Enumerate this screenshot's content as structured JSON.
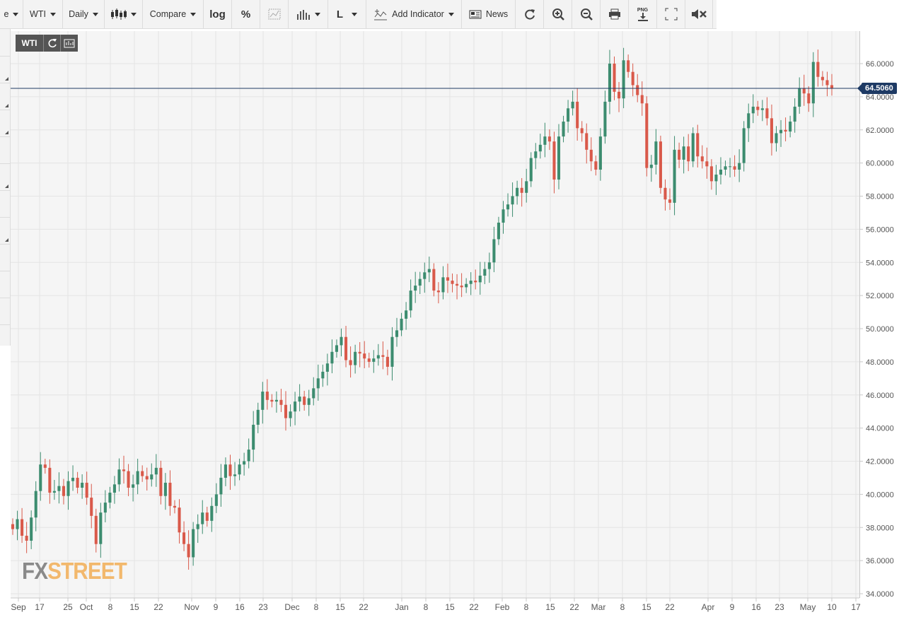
{
  "toolbar": {
    "partial_label": "e",
    "symbol": "WTI",
    "interval": "Daily",
    "compare": "Compare",
    "log": "log",
    "percent": "%",
    "line_type": "L",
    "add_indicator": "Add Indicator",
    "news": "News",
    "png": "PNG"
  },
  "plot_badge": {
    "symbol": "WTI"
  },
  "price_badge": "64.5060",
  "watermark": {
    "part1": "FX",
    "part2": "STREET"
  },
  "colors": {
    "up": "#3c8c6f",
    "down": "#d9594a",
    "price_line": "#1e3a64",
    "grid": "#e4e4e4"
  },
  "chart_data": {
    "type": "candlestick",
    "symbol": "WTI",
    "interval": "Daily",
    "ylim": [
      34,
      67.5
    ],
    "y_ticks": [
      "34.0000",
      "36.0000",
      "38.0000",
      "40.0000",
      "42.0000",
      "44.0000",
      "46.0000",
      "48.0000",
      "50.0000",
      "52.0000",
      "54.0000",
      "56.0000",
      "58.0000",
      "60.0000",
      "62.0000",
      "64.0000",
      "66.0000"
    ],
    "x_ticks": [
      "Sep",
      "17",
      "25",
      "Oct",
      "8",
      "15",
      "22",
      "Nov",
      "9",
      "16",
      "23",
      "Dec",
      "8",
      "15",
      "22",
      "Jan",
      "8",
      "15",
      "22",
      "Feb",
      "8",
      "15",
      "22",
      "Mar",
      "8",
      "15",
      "22",
      "Apr",
      "9",
      "16",
      "23",
      "May",
      "10",
      "17"
    ],
    "current_price": 64.506,
    "series": [
      {
        "values": [
          [
            38.2,
            37.9
          ],
          [
            37.9,
            38.5
          ],
          [
            38.5,
            37.5
          ],
          [
            37.5,
            37.2
          ],
          [
            37.2,
            38.6
          ],
          [
            38.6,
            40.2
          ],
          [
            40.2,
            41.8
          ],
          [
            41.8,
            41.6
          ],
          [
            41.6,
            40.1
          ],
          [
            40.1,
            40.2
          ],
          [
            40.2,
            40.5
          ],
          [
            40.5,
            39.9
          ],
          [
            39.9,
            40.8
          ],
          [
            40.8,
            41.0
          ],
          [
            41.0,
            40.4
          ],
          [
            40.4,
            40.7
          ],
          [
            40.7,
            39.8
          ],
          [
            39.8,
            38.7
          ],
          [
            38.7,
            37.0
          ],
          [
            37.0,
            38.9
          ],
          [
            38.9,
            39.5
          ],
          [
            39.5,
            40.1
          ],
          [
            40.1,
            40.6
          ],
          [
            40.6,
            41.5
          ],
          [
            41.5,
            41.4
          ],
          [
            41.4,
            40.4
          ],
          [
            40.4,
            40.6
          ],
          [
            40.6,
            41.4
          ],
          [
            41.4,
            41.1
          ],
          [
            41.1,
            40.9
          ],
          [
            40.9,
            41.2
          ],
          [
            41.2,
            41.6
          ],
          [
            41.6,
            39.9
          ],
          [
            39.9,
            40.7
          ],
          [
            40.7,
            39.3
          ],
          [
            39.3,
            39.2
          ],
          [
            39.2,
            37.7
          ],
          [
            37.7,
            37.0
          ],
          [
            37.0,
            36.2
          ],
          [
            36.2,
            37.9
          ],
          [
            37.9,
            38.2
          ],
          [
            38.2,
            38.9
          ],
          [
            38.9,
            38.4
          ],
          [
            38.4,
            39.3
          ],
          [
            39.3,
            40.0
          ],
          [
            40.0,
            41.0
          ],
          [
            41.0,
            41.8
          ],
          [
            41.8,
            41.1
          ],
          [
            41.1,
            41.2
          ],
          [
            41.2,
            41.8
          ],
          [
            41.8,
            42.0
          ],
          [
            42.0,
            42.7
          ],
          [
            42.7,
            44.2
          ],
          [
            44.2,
            45.1
          ],
          [
            45.1,
            46.2
          ],
          [
            46.2,
            45.7
          ],
          [
            45.7,
            45.6
          ],
          [
            45.6,
            45.7
          ],
          [
            45.7,
            45.4
          ],
          [
            45.4,
            44.6
          ],
          [
            44.6,
            45.0
          ],
          [
            45.0,
            45.6
          ],
          [
            45.6,
            45.9
          ],
          [
            45.9,
            45.4
          ],
          [
            45.4,
            45.8
          ],
          [
            45.8,
            46.4
          ],
          [
            46.4,
            47.0
          ],
          [
            47.0,
            47.4
          ],
          [
            47.4,
            47.9
          ],
          [
            47.9,
            48.6
          ],
          [
            48.6,
            49.0
          ],
          [
            49.0,
            49.5
          ],
          [
            49.5,
            48.1
          ],
          [
            48.1,
            47.8
          ],
          [
            47.8,
            48.6
          ],
          [
            48.6,
            48.5
          ],
          [
            48.5,
            48.2
          ],
          [
            48.2,
            48.0
          ],
          [
            48.0,
            48.2
          ],
          [
            48.2,
            48.4
          ],
          [
            48.4,
            48.3
          ],
          [
            48.3,
            47.7
          ],
          [
            47.7,
            49.5
          ],
          [
            49.5,
            49.9
          ],
          [
            49.9,
            50.6
          ],
          [
            50.6,
            51.1
          ],
          [
            51.1,
            52.3
          ],
          [
            52.3,
            52.6
          ],
          [
            52.6,
            53.0
          ],
          [
            53.0,
            53.4
          ],
          [
            53.4,
            53.6
          ],
          [
            53.6,
            52.3
          ],
          [
            52.3,
            52.2
          ],
          [
            52.2,
            53.1
          ],
          [
            53.1,
            52.9
          ],
          [
            52.9,
            52.7
          ],
          [
            52.7,
            52.6
          ],
          [
            52.6,
            52.5
          ],
          [
            52.5,
            52.7
          ],
          [
            52.7,
            52.9
          ],
          [
            52.9,
            52.8
          ],
          [
            52.8,
            53.2
          ],
          [
            53.2,
            53.6
          ],
          [
            53.6,
            54.0
          ],
          [
            54.0,
            55.4
          ],
          [
            55.4,
            56.4
          ],
          [
            56.4,
            57.2
          ],
          [
            57.2,
            57.5
          ],
          [
            57.5,
            58.0
          ],
          [
            58.0,
            58.5
          ],
          [
            58.5,
            58.2
          ],
          [
            58.2,
            58.9
          ],
          [
            58.9,
            60.3
          ],
          [
            60.3,
            60.7
          ],
          [
            60.7,
            61.1
          ],
          [
            61.1,
            61.6
          ],
          [
            61.6,
            61.3
          ],
          [
            61.3,
            59.0
          ],
          [
            59.0,
            61.6
          ],
          [
            61.6,
            62.5
          ],
          [
            62.5,
            63.3
          ],
          [
            63.3,
            63.7
          ],
          [
            63.7,
            62.1
          ],
          [
            62.1,
            61.8
          ],
          [
            61.8,
            60.8
          ],
          [
            60.8,
            60.1
          ],
          [
            60.1,
            59.6
          ],
          [
            59.6,
            61.6
          ],
          [
            61.6,
            63.7
          ],
          [
            63.7,
            66.0
          ],
          [
            66.0,
            64.3
          ],
          [
            64.3,
            63.9
          ],
          [
            63.9,
            66.2
          ],
          [
            66.2,
            65.5
          ],
          [
            65.5,
            64.7
          ],
          [
            64.7,
            64.1
          ],
          [
            64.1,
            63.6
          ],
          [
            63.6,
            59.7
          ],
          [
            59.7,
            59.9
          ],
          [
            59.9,
            61.3
          ],
          [
            61.3,
            58.5
          ],
          [
            58.5,
            57.8
          ],
          [
            57.8,
            57.6
          ],
          [
            57.6,
            60.8
          ],
          [
            60.8,
            60.2
          ],
          [
            60.2,
            61.0
          ],
          [
            61.0,
            60.1
          ],
          [
            60.1,
            61.8
          ],
          [
            61.8,
            60.4
          ],
          [
            60.4,
            60.1
          ],
          [
            60.1,
            59.8
          ],
          [
            59.8,
            58.9
          ],
          [
            58.9,
            59.3
          ],
          [
            59.3,
            59.6
          ],
          [
            59.6,
            59.8
          ],
          [
            59.8,
            59.8
          ],
          [
            59.8,
            59.6
          ],
          [
            59.6,
            60.0
          ],
          [
            60.0,
            62.1
          ],
          [
            62.1,
            63.0
          ],
          [
            63.0,
            63.4
          ],
          [
            63.4,
            63.2
          ],
          [
            63.2,
            63.3
          ],
          [
            63.3,
            62.7
          ],
          [
            62.7,
            61.2
          ],
          [
            61.2,
            61.8
          ],
          [
            61.8,
            62.0
          ],
          [
            62.0,
            61.9
          ],
          [
            61.9,
            62.5
          ],
          [
            62.5,
            63.4
          ],
          [
            63.4,
            64.5
          ],
          [
            64.5,
            64.2
          ],
          [
            64.2,
            63.6
          ],
          [
            63.6,
            66.1
          ],
          [
            66.1,
            65.2
          ],
          [
            65.2,
            65.0
          ],
          [
            65.0,
            64.7
          ],
          [
            64.7,
            64.5
          ]
        ]
      }
    ]
  }
}
